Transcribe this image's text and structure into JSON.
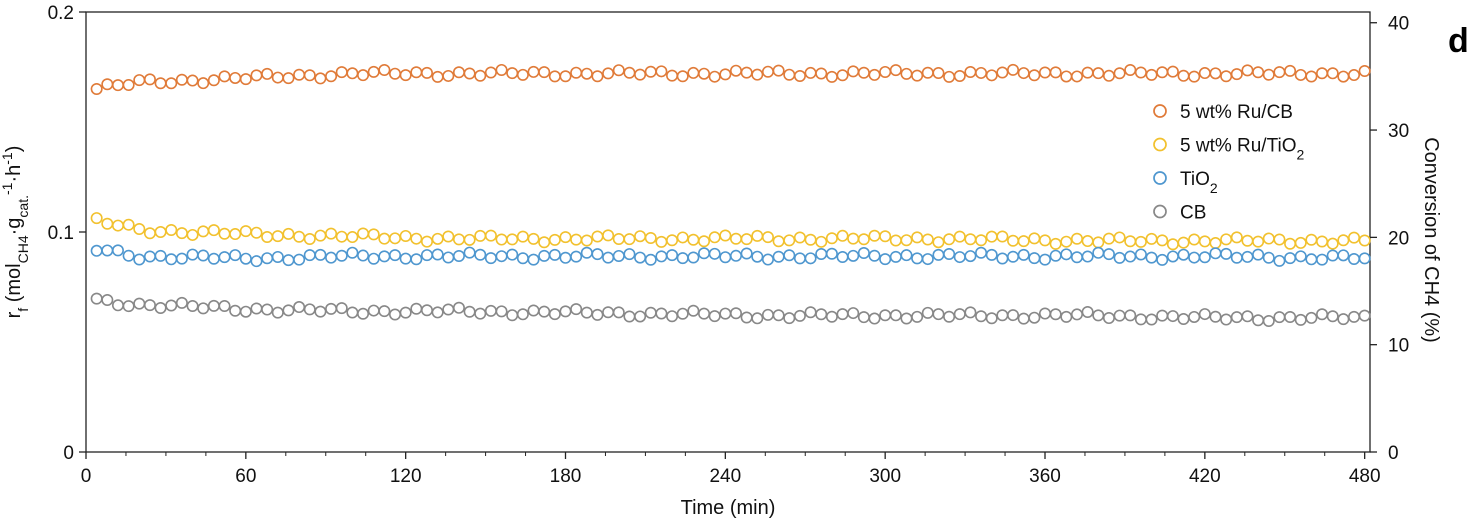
{
  "chart_data": {
    "type": "scatter",
    "panel_label": "d",
    "xlabel": "Time (min)",
    "ylabel_left": {
      "main": "r",
      "sub1": "f",
      "mid1": " (mol",
      "sub2": "CH4",
      "mid2": "·g",
      "sub3": "cat.",
      "sup1": "-1",
      "mid3": "·h",
      "sup2": "-1",
      "end": ")"
    },
    "ylabel_right": "Conversion of CH4 (%)",
    "xlim": [
      0,
      482
    ],
    "ylim_left": [
      0,
      0.2
    ],
    "ylim_right": [
      0,
      41
    ],
    "x_ticks": [
      "0",
      "60",
      "120",
      "180",
      "240",
      "300",
      "360",
      "420",
      "480"
    ],
    "y_left_ticks": [
      "0",
      "0.1",
      "0.2"
    ],
    "y_right_ticks": [
      "0",
      "10",
      "20",
      "30",
      "40"
    ],
    "legend_position": "right",
    "x_start": 4,
    "x_step": 4,
    "series": [
      {
        "name": "5 wt% Ru/CB",
        "name_main": "5 wt% Ru/CB",
        "name_sub": "",
        "color": "#E07B39",
        "anchors_x": [
          4,
          20,
          60,
          100,
          140,
          200,
          260,
          320,
          380,
          420,
          480
        ],
        "anchors_y": [
          0.165,
          0.168,
          0.17,
          0.172,
          0.172,
          0.172,
          0.172,
          0.172,
          0.172,
          0.172,
          0.172
        ]
      },
      {
        "name": "5 wt% Ru/TiO2",
        "name_main": "5 wt% Ru/TiO",
        "name_sub": "2",
        "color": "#F2C12E",
        "anchors_x": [
          4,
          20,
          60,
          100,
          140,
          200,
          260,
          320,
          380,
          420,
          480
        ],
        "anchors_y": [
          0.105,
          0.101,
          0.099,
          0.098,
          0.097,
          0.097,
          0.097,
          0.097,
          0.096,
          0.096,
          0.096
        ]
      },
      {
        "name": "TiO2",
        "name_main": "TiO",
        "name_sub": "2",
        "color": "#4F97CF",
        "anchors_x": [
          4,
          20,
          60,
          100,
          140,
          200,
          260,
          320,
          380,
          420,
          480
        ],
        "anchors_y": [
          0.092,
          0.089,
          0.088,
          0.089,
          0.089,
          0.089,
          0.089,
          0.089,
          0.089,
          0.089,
          0.088
        ]
      },
      {
        "name": "CB",
        "name_main": "CB",
        "name_sub": "",
        "color": "#888888",
        "anchors_x": [
          4,
          20,
          60,
          100,
          140,
          200,
          260,
          320,
          380,
          420,
          480
        ],
        "anchors_y": [
          0.069,
          0.067,
          0.065,
          0.064,
          0.064,
          0.063,
          0.062,
          0.062,
          0.062,
          0.061,
          0.061
        ]
      }
    ]
  }
}
